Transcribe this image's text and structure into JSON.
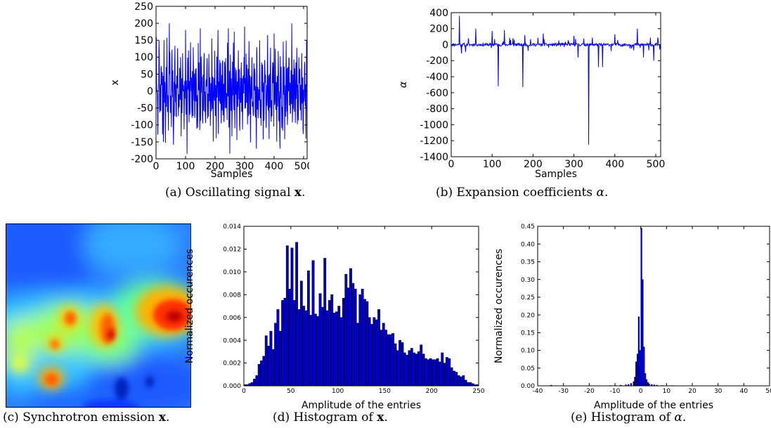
{
  "captions": {
    "a": {
      "prefix": "(a) Oscillating signal ",
      "symbol": "x",
      "suffix": "."
    },
    "b": {
      "prefix": "(b) Expansion coefficients ",
      "symbol": "α",
      "suffix": "."
    },
    "c": {
      "prefix": "(c) Synchrotron emission ",
      "symbol": "x",
      "suffix": "."
    },
    "d": {
      "prefix": "(d) Histogram of ",
      "symbol": "x",
      "suffix": "."
    },
    "e": {
      "prefix": "(e) Histogram of ",
      "symbol": "α",
      "suffix": "."
    }
  },
  "chart_data": [
    {
      "id": "a",
      "type": "line",
      "title": "",
      "xlabel": "Samples",
      "ylabel": "x",
      "xlim": [
        0,
        512
      ],
      "ylim": [
        -200,
        250
      ],
      "xticks": [
        0,
        100,
        200,
        300,
        400,
        500
      ],
      "yticks": [
        -200,
        -150,
        -100,
        -50,
        0,
        50,
        100,
        150,
        200,
        250
      ],
      "color": "#0000ff",
      "n_points": 512,
      "sample_points": [
        [
          0,
          20
        ],
        [
          10,
          150
        ],
        [
          25,
          -150
        ],
        [
          45,
          200
        ],
        [
          60,
          -90
        ],
        [
          100,
          180
        ],
        [
          105,
          -185
        ],
        [
          150,
          185
        ],
        [
          210,
          180
        ],
        [
          245,
          185
        ],
        [
          250,
          -185
        ],
        [
          265,
          175
        ],
        [
          300,
          190
        ],
        [
          340,
          -170
        ],
        [
          400,
          170
        ],
        [
          420,
          -170
        ],
        [
          460,
          200
        ],
        [
          510,
          150
        ]
      ]
    },
    {
      "id": "b",
      "type": "line",
      "title": "",
      "xlabel": "Samples",
      "ylabel": "α",
      "xlim": [
        0,
        512
      ],
      "ylim": [
        -1400,
        400
      ],
      "xticks": [
        0,
        100,
        200,
        300,
        400,
        500
      ],
      "yticks": [
        -1400,
        -1200,
        -1000,
        -800,
        -600,
        -400,
        -200,
        0,
        200,
        400
      ],
      "color": "#0000ff",
      "n_points": 512,
      "spikes": [
        [
          20,
          360
        ],
        [
          25,
          -110
        ],
        [
          35,
          -90
        ],
        [
          60,
          200
        ],
        [
          100,
          170
        ],
        [
          115,
          -520
        ],
        [
          130,
          180
        ],
        [
          175,
          -530
        ],
        [
          180,
          120
        ],
        [
          225,
          140
        ],
        [
          300,
          110
        ],
        [
          310,
          -160
        ],
        [
          336,
          -1250
        ],
        [
          360,
          -280
        ],
        [
          370,
          -280
        ],
        [
          400,
          130
        ],
        [
          455,
          200
        ],
        [
          470,
          -160
        ],
        [
          495,
          -200
        ],
        [
          505,
          90
        ],
        [
          510,
          -60
        ]
      ]
    },
    {
      "id": "c",
      "type": "heatmap",
      "title": "",
      "colormap": "jet"
    },
    {
      "id": "d",
      "type": "bar",
      "title": "",
      "xlabel": "Amplitude of the entries",
      "ylabel": "Normalized occurences",
      "xlim": [
        0,
        250
      ],
      "ylim": [
        0,
        0.014
      ],
      "xticks": [
        0,
        50,
        100,
        150,
        200,
        250
      ],
      "yticks": [
        0.0,
        0.002,
        0.004,
        0.006,
        0.008,
        0.01,
        0.012,
        0.014
      ],
      "ytick_labels": [
        "0.000",
        "0.002",
        "0.004",
        "0.006",
        "0.008",
        "0.010",
        "0.012",
        "0.014"
      ],
      "bar_color": "#0000cc",
      "bin_width": 2.5,
      "bins_start": 0,
      "values": [
        0.0001,
        0.0001,
        0.0002,
        0.0003,
        0.0006,
        0.0009,
        0.0019,
        0.0022,
        0.0026,
        0.0044,
        0.0035,
        0.0048,
        0.0032,
        0.0055,
        0.0067,
        0.0048,
        0.0075,
        0.0077,
        0.0123,
        0.0085,
        0.0121,
        0.0075,
        0.0126,
        0.0067,
        0.0092,
        0.007,
        0.0066,
        0.0101,
        0.0062,
        0.011,
        0.0063,
        0.0061,
        0.0081,
        0.0069,
        0.0112,
        0.0066,
        0.0075,
        0.008,
        0.0064,
        0.0065,
        0.007,
        0.006,
        0.0077,
        0.0098,
        0.0086,
        0.0103,
        0.009,
        0.0085,
        0.0055,
        0.008,
        0.0085,
        0.0076,
        0.0074,
        0.006,
        0.0054,
        0.006,
        0.0058,
        0.0067,
        0.0049,
        0.0055,
        0.0049,
        0.0045,
        0.0045,
        0.0046,
        0.0037,
        0.0031,
        0.004,
        0.0038,
        0.0029,
        0.0027,
        0.0031,
        0.0033,
        0.0029,
        0.0028,
        0.003,
        0.0036,
        0.0028,
        0.0024,
        0.0023,
        0.0024,
        0.0023,
        0.0023,
        0.0024,
        0.0021,
        0.0029,
        0.002,
        0.0025,
        0.0024,
        0.0016,
        0.0013,
        0.0012,
        0.0009,
        0.0008,
        0.0009,
        0.0005,
        0.0003,
        0.0003,
        0.0002,
        0.0001,
        0.0001
      ]
    },
    {
      "id": "e",
      "type": "bar",
      "title": "",
      "xlabel": "Amplitude of the entries",
      "ylabel": "Normalized occurences",
      "xlim": [
        -40,
        50
      ],
      "ylim": [
        0,
        0.45
      ],
      "xticks": [
        -40,
        -30,
        -20,
        -10,
        0,
        10,
        20,
        30,
        40,
        50
      ],
      "yticks": [
        0.0,
        0.05,
        0.1,
        0.15,
        0.2,
        0.25,
        0.3,
        0.35,
        0.4,
        0.45
      ],
      "ytick_labels": [
        "0.00",
        "0.05",
        "0.10",
        "0.15",
        "0.20",
        "0.25",
        "0.30",
        "0.35",
        "0.40",
        "0.45"
      ],
      "bar_color": "#0000cc",
      "bin_width": 0.5,
      "bins": [
        [
          -35,
          0.002
        ],
        [
          -12,
          0.001
        ],
        [
          -10,
          0.001
        ],
        [
          -8,
          0.002
        ],
        [
          -6,
          0.003
        ],
        [
          -5,
          0.004
        ],
        [
          -4,
          0.007
        ],
        [
          -3,
          0.012
        ],
        [
          -2.5,
          0.025
        ],
        [
          -2,
          0.068
        ],
        [
          -1.5,
          0.09
        ],
        [
          -1,
          0.195
        ],
        [
          -0.5,
          0.1
        ],
        [
          0,
          0.445
        ],
        [
          0.5,
          0.3
        ],
        [
          1,
          0.11
        ],
        [
          1.5,
          0.035
        ],
        [
          2,
          0.018
        ],
        [
          2.5,
          0.01
        ],
        [
          3,
          0.006
        ],
        [
          4,
          0.004
        ],
        [
          5,
          0.003
        ],
        [
          6,
          0.002
        ],
        [
          8,
          0.001
        ],
        [
          12,
          0.001
        ]
      ]
    }
  ]
}
